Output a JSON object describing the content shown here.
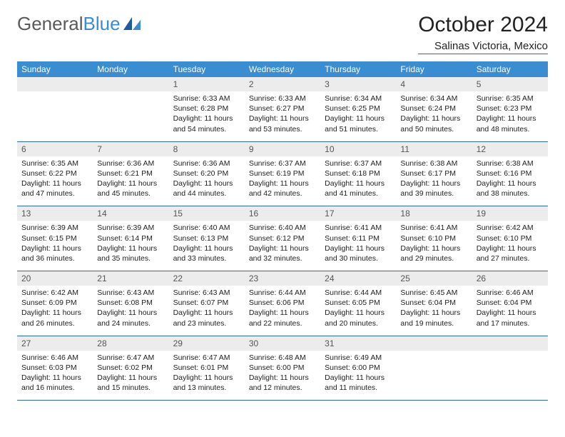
{
  "colors": {
    "header_blue": "#3a8dd0",
    "rule_blue": "#2e6ca4",
    "daynum_bg": "#ececec",
    "daynum_fg": "#555555",
    "body_text": "#222222",
    "logo_gray": "#5a5a5a"
  },
  "logo": {
    "part1": "General",
    "part2": "Blue"
  },
  "title": "October 2024",
  "location": "Salinas Victoria, Mexico",
  "weekdays": [
    "Sunday",
    "Monday",
    "Tuesday",
    "Wednesday",
    "Thursday",
    "Friday",
    "Saturday"
  ],
  "weeks": [
    [
      null,
      null,
      {
        "n": "1",
        "sr": "6:33 AM",
        "ss": "6:28 PM",
        "dl": "11 hours and 54 minutes."
      },
      {
        "n": "2",
        "sr": "6:33 AM",
        "ss": "6:27 PM",
        "dl": "11 hours and 53 minutes."
      },
      {
        "n": "3",
        "sr": "6:34 AM",
        "ss": "6:25 PM",
        "dl": "11 hours and 51 minutes."
      },
      {
        "n": "4",
        "sr": "6:34 AM",
        "ss": "6:24 PM",
        "dl": "11 hours and 50 minutes."
      },
      {
        "n": "5",
        "sr": "6:35 AM",
        "ss": "6:23 PM",
        "dl": "11 hours and 48 minutes."
      }
    ],
    [
      {
        "n": "6",
        "sr": "6:35 AM",
        "ss": "6:22 PM",
        "dl": "11 hours and 47 minutes."
      },
      {
        "n": "7",
        "sr": "6:36 AM",
        "ss": "6:21 PM",
        "dl": "11 hours and 45 minutes."
      },
      {
        "n": "8",
        "sr": "6:36 AM",
        "ss": "6:20 PM",
        "dl": "11 hours and 44 minutes."
      },
      {
        "n": "9",
        "sr": "6:37 AM",
        "ss": "6:19 PM",
        "dl": "11 hours and 42 minutes."
      },
      {
        "n": "10",
        "sr": "6:37 AM",
        "ss": "6:18 PM",
        "dl": "11 hours and 41 minutes."
      },
      {
        "n": "11",
        "sr": "6:38 AM",
        "ss": "6:17 PM",
        "dl": "11 hours and 39 minutes."
      },
      {
        "n": "12",
        "sr": "6:38 AM",
        "ss": "6:16 PM",
        "dl": "11 hours and 38 minutes."
      }
    ],
    [
      {
        "n": "13",
        "sr": "6:39 AM",
        "ss": "6:15 PM",
        "dl": "11 hours and 36 minutes."
      },
      {
        "n": "14",
        "sr": "6:39 AM",
        "ss": "6:14 PM",
        "dl": "11 hours and 35 minutes."
      },
      {
        "n": "15",
        "sr": "6:40 AM",
        "ss": "6:13 PM",
        "dl": "11 hours and 33 minutes."
      },
      {
        "n": "16",
        "sr": "6:40 AM",
        "ss": "6:12 PM",
        "dl": "11 hours and 32 minutes."
      },
      {
        "n": "17",
        "sr": "6:41 AM",
        "ss": "6:11 PM",
        "dl": "11 hours and 30 minutes."
      },
      {
        "n": "18",
        "sr": "6:41 AM",
        "ss": "6:10 PM",
        "dl": "11 hours and 29 minutes."
      },
      {
        "n": "19",
        "sr": "6:42 AM",
        "ss": "6:10 PM",
        "dl": "11 hours and 27 minutes."
      }
    ],
    [
      {
        "n": "20",
        "sr": "6:42 AM",
        "ss": "6:09 PM",
        "dl": "11 hours and 26 minutes."
      },
      {
        "n": "21",
        "sr": "6:43 AM",
        "ss": "6:08 PM",
        "dl": "11 hours and 24 minutes."
      },
      {
        "n": "22",
        "sr": "6:43 AM",
        "ss": "6:07 PM",
        "dl": "11 hours and 23 minutes."
      },
      {
        "n": "23",
        "sr": "6:44 AM",
        "ss": "6:06 PM",
        "dl": "11 hours and 22 minutes."
      },
      {
        "n": "24",
        "sr": "6:44 AM",
        "ss": "6:05 PM",
        "dl": "11 hours and 20 minutes."
      },
      {
        "n": "25",
        "sr": "6:45 AM",
        "ss": "6:04 PM",
        "dl": "11 hours and 19 minutes."
      },
      {
        "n": "26",
        "sr": "6:46 AM",
        "ss": "6:04 PM",
        "dl": "11 hours and 17 minutes."
      }
    ],
    [
      {
        "n": "27",
        "sr": "6:46 AM",
        "ss": "6:03 PM",
        "dl": "11 hours and 16 minutes."
      },
      {
        "n": "28",
        "sr": "6:47 AM",
        "ss": "6:02 PM",
        "dl": "11 hours and 15 minutes."
      },
      {
        "n": "29",
        "sr": "6:47 AM",
        "ss": "6:01 PM",
        "dl": "11 hours and 13 minutes."
      },
      {
        "n": "30",
        "sr": "6:48 AM",
        "ss": "6:00 PM",
        "dl": "11 hours and 12 minutes."
      },
      {
        "n": "31",
        "sr": "6:49 AM",
        "ss": "6:00 PM",
        "dl": "11 hours and 11 minutes."
      },
      null,
      null
    ]
  ],
  "labels": {
    "sunrise": "Sunrise: ",
    "sunset": "Sunset: ",
    "daylight": "Daylight: "
  }
}
